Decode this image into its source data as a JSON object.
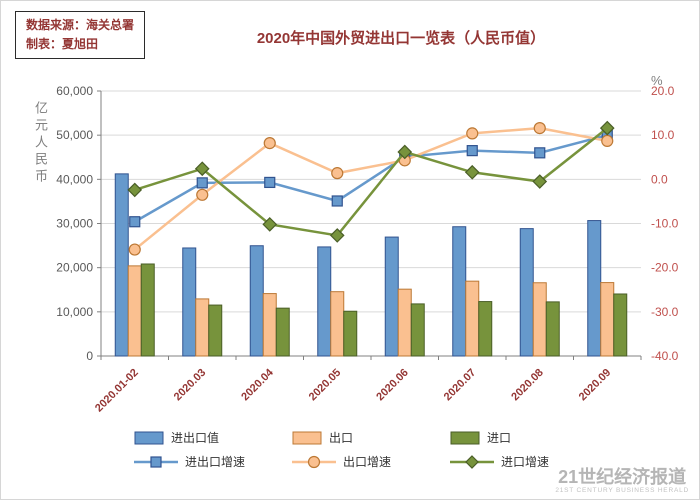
{
  "source_box": {
    "line1": "数据来源：海关总署",
    "line2": "制表：夏旭田"
  },
  "title": "2020年中国外贸进出口一览表（人民币值）",
  "watermark": {
    "cn": "21世纪经济报道",
    "en": "21ST CENTURY BUSINESS HERALD"
  },
  "colors": {
    "title_text": "#943634",
    "x_labels": "#943634",
    "axis_labels_left": "#595959",
    "axis_labels_right": "#C0504D",
    "grid": "#D9D9D9",
    "axis_line": "#808080"
  },
  "chart_data": {
    "type": "bar+line",
    "title": "2020年中国外贸进出口一览表（人民币值）",
    "categories": [
      "2020.01-02",
      "2020.03",
      "2020.04",
      "2020.05",
      "2020.06",
      "2020.07",
      "2020.08",
      "2020.09"
    ],
    "bar_series": [
      {
        "name": "进出口值",
        "axis": "left",
        "color": "#6699CC",
        "border": "#31538F",
        "values": [
          41238,
          24459,
          24966,
          24696,
          26927,
          29269,
          28839,
          30663
        ]
      },
      {
        "name": "出口",
        "axis": "left",
        "color": "#FAC090",
        "border": "#BC7834",
        "values": [
          20406,
          12927,
          14132,
          14562,
          15131,
          16944,
          16584,
          16622
        ]
      },
      {
        "name": "进口",
        "axis": "left",
        "color": "#77933C",
        "border": "#4A5E27",
        "values": [
          20832,
          11532,
          10834,
          10134,
          11796,
          12325,
          12255,
          14041
        ]
      }
    ],
    "line_series": [
      {
        "name": "进出口增速",
        "axis": "right",
        "marker": "square",
        "color": "#6699CC",
        "border": "#31538F",
        "values": [
          -9.6,
          -0.8,
          -0.7,
          -4.9,
          5.1,
          6.5,
          6.0,
          10.0
        ]
      },
      {
        "name": "出口增速",
        "axis": "right",
        "marker": "circle",
        "color": "#FAC090",
        "border": "#BC7834",
        "values": [
          -15.9,
          -3.5,
          8.2,
          1.4,
          4.3,
          10.4,
          11.6,
          8.7
        ]
      },
      {
        "name": "进口增速",
        "axis": "right",
        "marker": "diamond",
        "color": "#77933C",
        "border": "#4A5E27",
        "values": [
          -2.4,
          2.4,
          -10.2,
          -12.7,
          6.2,
          1.6,
          -0.5,
          11.6
        ]
      }
    ],
    "left_axis": {
      "label": "亿元人民币",
      "min": 0,
      "max": 60000,
      "step": 10000,
      "tick_labels_top_to_bottom": [
        "60,000",
        "50,000",
        "40,000",
        "30,000",
        "20,000",
        "10,000",
        "0"
      ]
    },
    "right_axis": {
      "label": "%",
      "min": -40,
      "max": 20,
      "step": 10,
      "tick_labels_top_to_bottom": [
        "20.0",
        "10.0",
        "0.0",
        "-10.0",
        "-20.0",
        "-30.0",
        "-40.0"
      ]
    },
    "grid": true,
    "legend_position": "bottom"
  }
}
